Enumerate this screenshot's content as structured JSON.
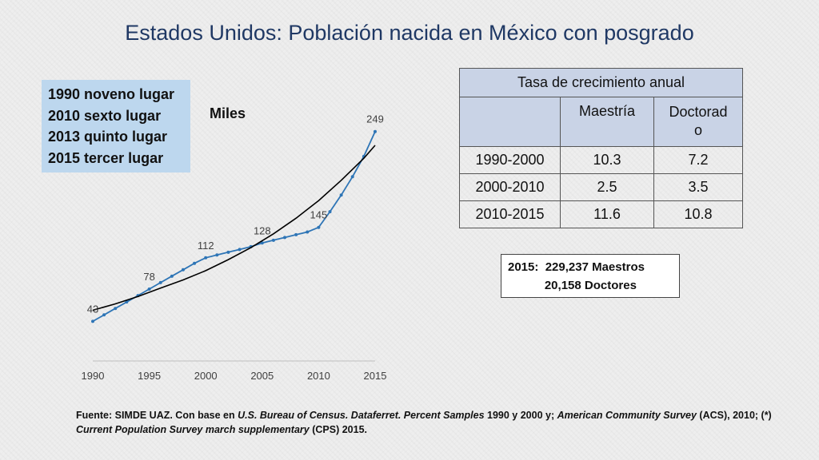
{
  "title": "Estados Unidos: Población nacida en México con posgrado",
  "rank_box": {
    "lines": [
      "1990 noveno lugar",
      "2010 sexto lugar",
      "2013 quinto lugar",
      "2015 tercer lugar"
    ]
  },
  "units_label": "Miles",
  "chart_data": {
    "type": "line",
    "title": "",
    "xlabel": "",
    "ylabel": "Miles",
    "xlim": [
      1990,
      2015
    ],
    "ylim": [
      0,
      260
    ],
    "x_ticks": [
      "1990",
      "1995",
      "2000",
      "2005",
      "2010",
      "2015"
    ],
    "series": [
      {
        "color": "#2e75b6",
        "x": [
          1990,
          1991,
          1992,
          1993,
          1994,
          1995,
          1996,
          1997,
          1998,
          1999,
          2000,
          2001,
          2002,
          2003,
          2004,
          2005,
          2006,
          2007,
          2008,
          2009,
          2010,
          2011,
          2012,
          2013,
          2014,
          2015
        ],
        "y": [
          43,
          50,
          57,
          64,
          71,
          78,
          85,
          92,
          99,
          106,
          112,
          115,
          118,
          121,
          124,
          128,
          131,
          134,
          137,
          140,
          145,
          162,
          180,
          200,
          222,
          249
        ]
      },
      {
        "color": "#000000",
        "x": [
          1990,
          1992,
          1994,
          1996,
          1998,
          2000,
          2002,
          2004,
          2006,
          2008,
          2010,
          2012,
          2014,
          2015
        ],
        "y": [
          55,
          62,
          70,
          79,
          88,
          98,
          110,
          123,
          138,
          155,
          174,
          196,
          220,
          234
        ]
      }
    ],
    "data_labels": [
      {
        "x": 1990,
        "y": 43,
        "text": "43"
      },
      {
        "x": 1995,
        "y": 78,
        "text": "78"
      },
      {
        "x": 2000,
        "y": 112,
        "text": "112"
      },
      {
        "x": 2005,
        "y": 128,
        "text": "128"
      },
      {
        "x": 2010,
        "y": 145,
        "text": "145"
      },
      {
        "x": 2015,
        "y": 249,
        "text": "249"
      }
    ]
  },
  "rates_table": {
    "title": "Tasa de crecimiento anual",
    "col_maestria": "Maestría",
    "col_doctorado_1": "Doctorad",
    "col_doctorado_2": "o",
    "rows": [
      {
        "period": "1990-2000",
        "maestria": "10.3",
        "doctorado": "7.2"
      },
      {
        "period": "2000-2010",
        "maestria": "2.5",
        "doctorado": "3.5"
      },
      {
        "period": "2010-2015",
        "maestria": "11.6",
        "doctorado": "10.8"
      }
    ]
  },
  "totals": {
    "line1": "2015:  229,237 Maestros",
    "line2": "           20,158 Doctores"
  },
  "source": {
    "p1": "Fuente: SIMDE UAZ. Con base en ",
    "i1": "U.S. Bureau of Census. Dataferret. Percent Samples",
    "p2": " 1990 y 2000 y; ",
    "i2": "American Community Survey",
    "p3": " (ACS), 2010; (*) ",
    "i3": "Current Population Survey march supplementary",
    "p4": " (CPS) 2015."
  }
}
